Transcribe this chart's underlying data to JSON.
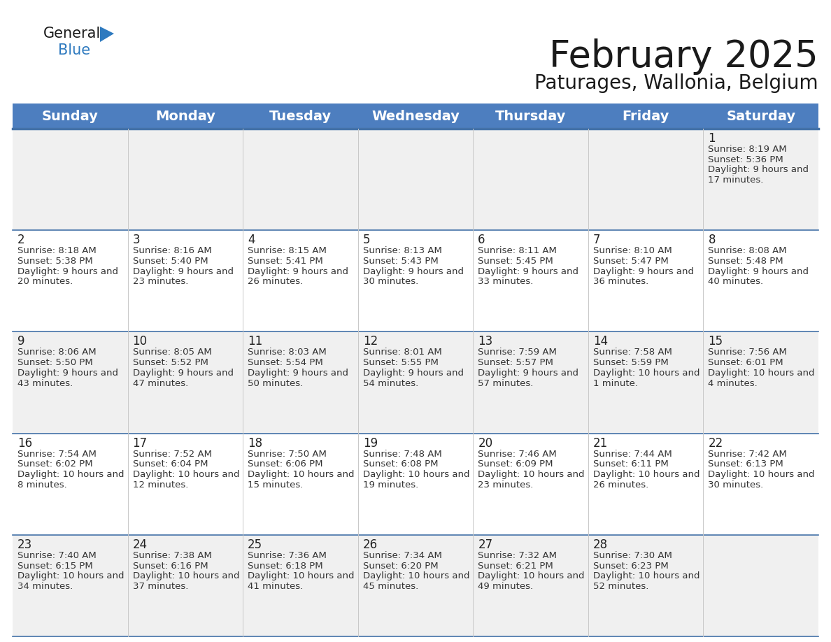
{
  "title": "February 2025",
  "subtitle": "Paturages, Wallonia, Belgium",
  "header_color": "#4d7ebf",
  "header_text_color": "#ffffff",
  "cell_bg_even": "#f0f0f0",
  "cell_bg_odd": "#ffffff",
  "border_color": "#4472a8",
  "day_headers": [
    "Sunday",
    "Monday",
    "Tuesday",
    "Wednesday",
    "Thursday",
    "Friday",
    "Saturday"
  ],
  "title_fontsize": 38,
  "subtitle_fontsize": 20,
  "header_fontsize": 14,
  "day_num_fontsize": 12,
  "info_fontsize": 9.5,
  "days": [
    {
      "day": 1,
      "col": 6,
      "row": 0,
      "sunrise": "8:19 AM",
      "sunset": "5:36 PM",
      "daylight": "9 hours and 17 minutes."
    },
    {
      "day": 2,
      "col": 0,
      "row": 1,
      "sunrise": "8:18 AM",
      "sunset": "5:38 PM",
      "daylight": "9 hours and 20 minutes."
    },
    {
      "day": 3,
      "col": 1,
      "row": 1,
      "sunrise": "8:16 AM",
      "sunset": "5:40 PM",
      "daylight": "9 hours and 23 minutes."
    },
    {
      "day": 4,
      "col": 2,
      "row": 1,
      "sunrise": "8:15 AM",
      "sunset": "5:41 PM",
      "daylight": "9 hours and 26 minutes."
    },
    {
      "day": 5,
      "col": 3,
      "row": 1,
      "sunrise": "8:13 AM",
      "sunset": "5:43 PM",
      "daylight": "9 hours and 30 minutes."
    },
    {
      "day": 6,
      "col": 4,
      "row": 1,
      "sunrise": "8:11 AM",
      "sunset": "5:45 PM",
      "daylight": "9 hours and 33 minutes."
    },
    {
      "day": 7,
      "col": 5,
      "row": 1,
      "sunrise": "8:10 AM",
      "sunset": "5:47 PM",
      "daylight": "9 hours and 36 minutes."
    },
    {
      "day": 8,
      "col": 6,
      "row": 1,
      "sunrise": "8:08 AM",
      "sunset": "5:48 PM",
      "daylight": "9 hours and 40 minutes."
    },
    {
      "day": 9,
      "col": 0,
      "row": 2,
      "sunrise": "8:06 AM",
      "sunset": "5:50 PM",
      "daylight": "9 hours and 43 minutes."
    },
    {
      "day": 10,
      "col": 1,
      "row": 2,
      "sunrise": "8:05 AM",
      "sunset": "5:52 PM",
      "daylight": "9 hours and 47 minutes."
    },
    {
      "day": 11,
      "col": 2,
      "row": 2,
      "sunrise": "8:03 AM",
      "sunset": "5:54 PM",
      "daylight": "9 hours and 50 minutes."
    },
    {
      "day": 12,
      "col": 3,
      "row": 2,
      "sunrise": "8:01 AM",
      "sunset": "5:55 PM",
      "daylight": "9 hours and 54 minutes."
    },
    {
      "day": 13,
      "col": 4,
      "row": 2,
      "sunrise": "7:59 AM",
      "sunset": "5:57 PM",
      "daylight": "9 hours and 57 minutes."
    },
    {
      "day": 14,
      "col": 5,
      "row": 2,
      "sunrise": "7:58 AM",
      "sunset": "5:59 PM",
      "daylight": "10 hours and 1 minute."
    },
    {
      "day": 15,
      "col": 6,
      "row": 2,
      "sunrise": "7:56 AM",
      "sunset": "6:01 PM",
      "daylight": "10 hours and 4 minutes."
    },
    {
      "day": 16,
      "col": 0,
      "row": 3,
      "sunrise": "7:54 AM",
      "sunset": "6:02 PM",
      "daylight": "10 hours and 8 minutes."
    },
    {
      "day": 17,
      "col": 1,
      "row": 3,
      "sunrise": "7:52 AM",
      "sunset": "6:04 PM",
      "daylight": "10 hours and 12 minutes."
    },
    {
      "day": 18,
      "col": 2,
      "row": 3,
      "sunrise": "7:50 AM",
      "sunset": "6:06 PM",
      "daylight": "10 hours and 15 minutes."
    },
    {
      "day": 19,
      "col": 3,
      "row": 3,
      "sunrise": "7:48 AM",
      "sunset": "6:08 PM",
      "daylight": "10 hours and 19 minutes."
    },
    {
      "day": 20,
      "col": 4,
      "row": 3,
      "sunrise": "7:46 AM",
      "sunset": "6:09 PM",
      "daylight": "10 hours and 23 minutes."
    },
    {
      "day": 21,
      "col": 5,
      "row": 3,
      "sunrise": "7:44 AM",
      "sunset": "6:11 PM",
      "daylight": "10 hours and 26 minutes."
    },
    {
      "day": 22,
      "col": 6,
      "row": 3,
      "sunrise": "7:42 AM",
      "sunset": "6:13 PM",
      "daylight": "10 hours and 30 minutes."
    },
    {
      "day": 23,
      "col": 0,
      "row": 4,
      "sunrise": "7:40 AM",
      "sunset": "6:15 PM",
      "daylight": "10 hours and 34 minutes."
    },
    {
      "day": 24,
      "col": 1,
      "row": 4,
      "sunrise": "7:38 AM",
      "sunset": "6:16 PM",
      "daylight": "10 hours and 37 minutes."
    },
    {
      "day": 25,
      "col": 2,
      "row": 4,
      "sunrise": "7:36 AM",
      "sunset": "6:18 PM",
      "daylight": "10 hours and 41 minutes."
    },
    {
      "day": 26,
      "col": 3,
      "row": 4,
      "sunrise": "7:34 AM",
      "sunset": "6:20 PM",
      "daylight": "10 hours and 45 minutes."
    },
    {
      "day": 27,
      "col": 4,
      "row": 4,
      "sunrise": "7:32 AM",
      "sunset": "6:21 PM",
      "daylight": "10 hours and 49 minutes."
    },
    {
      "day": 28,
      "col": 5,
      "row": 4,
      "sunrise": "7:30 AM",
      "sunset": "6:23 PM",
      "daylight": "10 hours and 52 minutes."
    }
  ]
}
